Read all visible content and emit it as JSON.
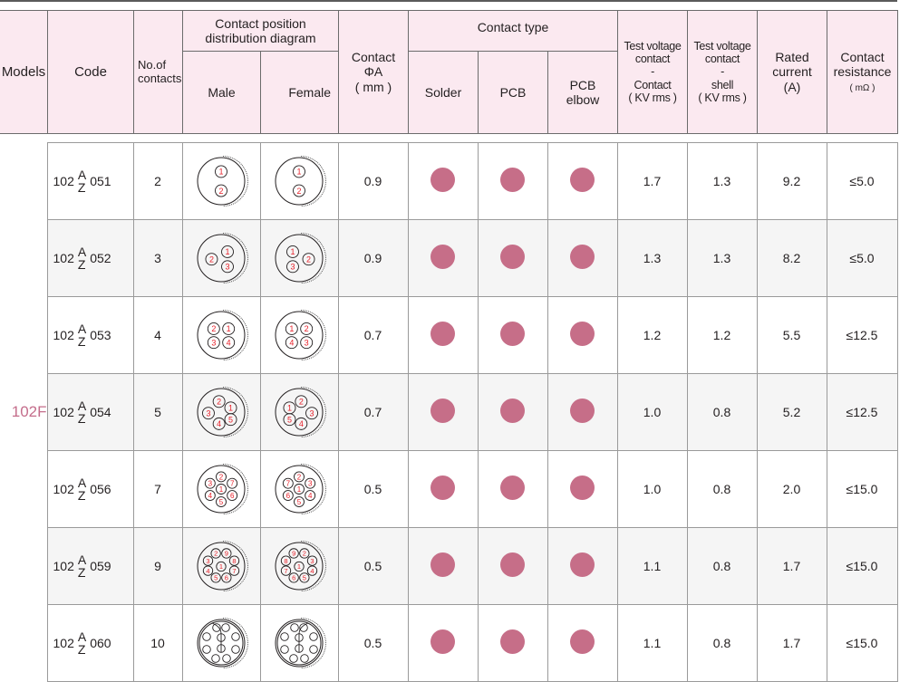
{
  "header": {
    "models": "Models",
    "code": "Code",
    "no_of_contacts": [
      "No.of",
      "contacts"
    ],
    "contact_position": [
      "Contact position",
      "distribution diagram"
    ],
    "male": "Male",
    "female": "Female",
    "contact_diameter": [
      "Contact",
      "ΦA",
      "( mm )"
    ],
    "contact_type": "Contact type",
    "solder": "Solder",
    "pcb": "PCB",
    "pcb_elbow": [
      "PCB",
      "elbow"
    ],
    "test_voltage_cc": [
      "Test voltage",
      "contact",
      "-",
      "Contact",
      "( KV rms )"
    ],
    "test_voltage_cs": [
      "Test voltage",
      "contact",
      "-",
      "shell",
      "( KV rms )"
    ],
    "rated_current": [
      "Rated",
      "current",
      "(A)"
    ],
    "contact_resistance": [
      "Contact",
      "resistance",
      "( mΩ )"
    ]
  },
  "model_name": "102F",
  "colors": {
    "accent": "#c66e88",
    "header_bg": "#fbe9f0",
    "pin_label": "#e8212a"
  },
  "rows": [
    {
      "code_prefix": "102",
      "code_top": "A",
      "code_bottom": "Z",
      "code_suffix": "051",
      "contacts": "2",
      "diameter": "0.9",
      "solder": true,
      "pcb": true,
      "pcb_elbow": true,
      "tv_contact": "1.7",
      "tv_shell": "1.3",
      "current": "9.2",
      "resistance": "≤5.0",
      "layout": "2"
    },
    {
      "code_prefix": "102",
      "code_top": "A",
      "code_bottom": "Z",
      "code_suffix": "052",
      "contacts": "3",
      "diameter": "0.9",
      "solder": true,
      "pcb": true,
      "pcb_elbow": true,
      "tv_contact": "1.3",
      "tv_shell": "1.3",
      "current": "8.2",
      "resistance": "≤5.0",
      "layout": "3"
    },
    {
      "code_prefix": "102",
      "code_top": "A",
      "code_bottom": "Z",
      "code_suffix": "053",
      "contacts": "4",
      "diameter": "0.7",
      "solder": true,
      "pcb": true,
      "pcb_elbow": true,
      "tv_contact": "1.2",
      "tv_shell": "1.2",
      "current": "5.5",
      "resistance": "≤12.5",
      "layout": "4"
    },
    {
      "code_prefix": "102",
      "code_top": "A",
      "code_bottom": "Z",
      "code_suffix": "054",
      "contacts": "5",
      "diameter": "0.7",
      "solder": true,
      "pcb": true,
      "pcb_elbow": true,
      "tv_contact": "1.0",
      "tv_shell": "0.8",
      "current": "5.2",
      "resistance": "≤12.5",
      "layout": "5"
    },
    {
      "code_prefix": "102",
      "code_top": "A",
      "code_bottom": "Z",
      "code_suffix": "056",
      "contacts": "7",
      "diameter": "0.5",
      "solder": true,
      "pcb": true,
      "pcb_elbow": true,
      "tv_contact": "1.0",
      "tv_shell": "0.8",
      "current": "2.0",
      "resistance": "≤15.0",
      "layout": "7"
    },
    {
      "code_prefix": "102",
      "code_top": "A",
      "code_bottom": "Z",
      "code_suffix": "059",
      "contacts": "9",
      "diameter": "0.5",
      "solder": true,
      "pcb": true,
      "pcb_elbow": true,
      "tv_contact": "1.1",
      "tv_shell": "0.8",
      "current": "1.7",
      "resistance": "≤15.0",
      "layout": "9"
    },
    {
      "code_prefix": "102",
      "code_top": "A",
      "code_bottom": "Z",
      "code_suffix": "060",
      "contacts": "10",
      "diameter": "0.5",
      "solder": true,
      "pcb": true,
      "pcb_elbow": true,
      "tv_contact": "1.1",
      "tv_shell": "0.8",
      "current": "1.7",
      "resistance": "≤15.0",
      "layout": "10"
    }
  ]
}
